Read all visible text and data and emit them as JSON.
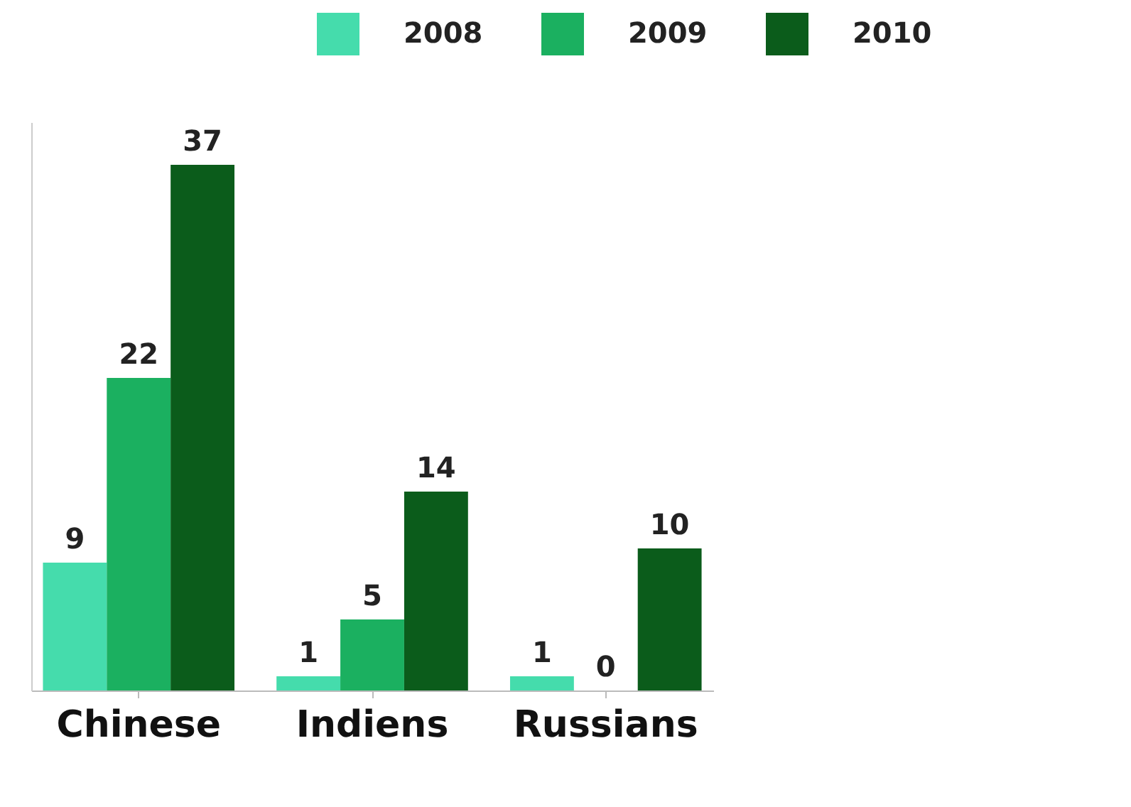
{
  "chart_data": {
    "type": "bar",
    "categories": [
      "Chinese",
      "Indiens",
      "Russians"
    ],
    "series": [
      {
        "name": "2008",
        "color": "#45dcac",
        "values": [
          9,
          1,
          1
        ]
      },
      {
        "name": "2009",
        "color": "#1bb060",
        "values": [
          22,
          5,
          0
        ]
      },
      {
        "name": "2010",
        "color": "#0b5c1b",
        "values": [
          37,
          14,
          10
        ]
      }
    ],
    "data_labels": true,
    "legend": "top right",
    "grid": false,
    "tick_labels": "x"
  }
}
